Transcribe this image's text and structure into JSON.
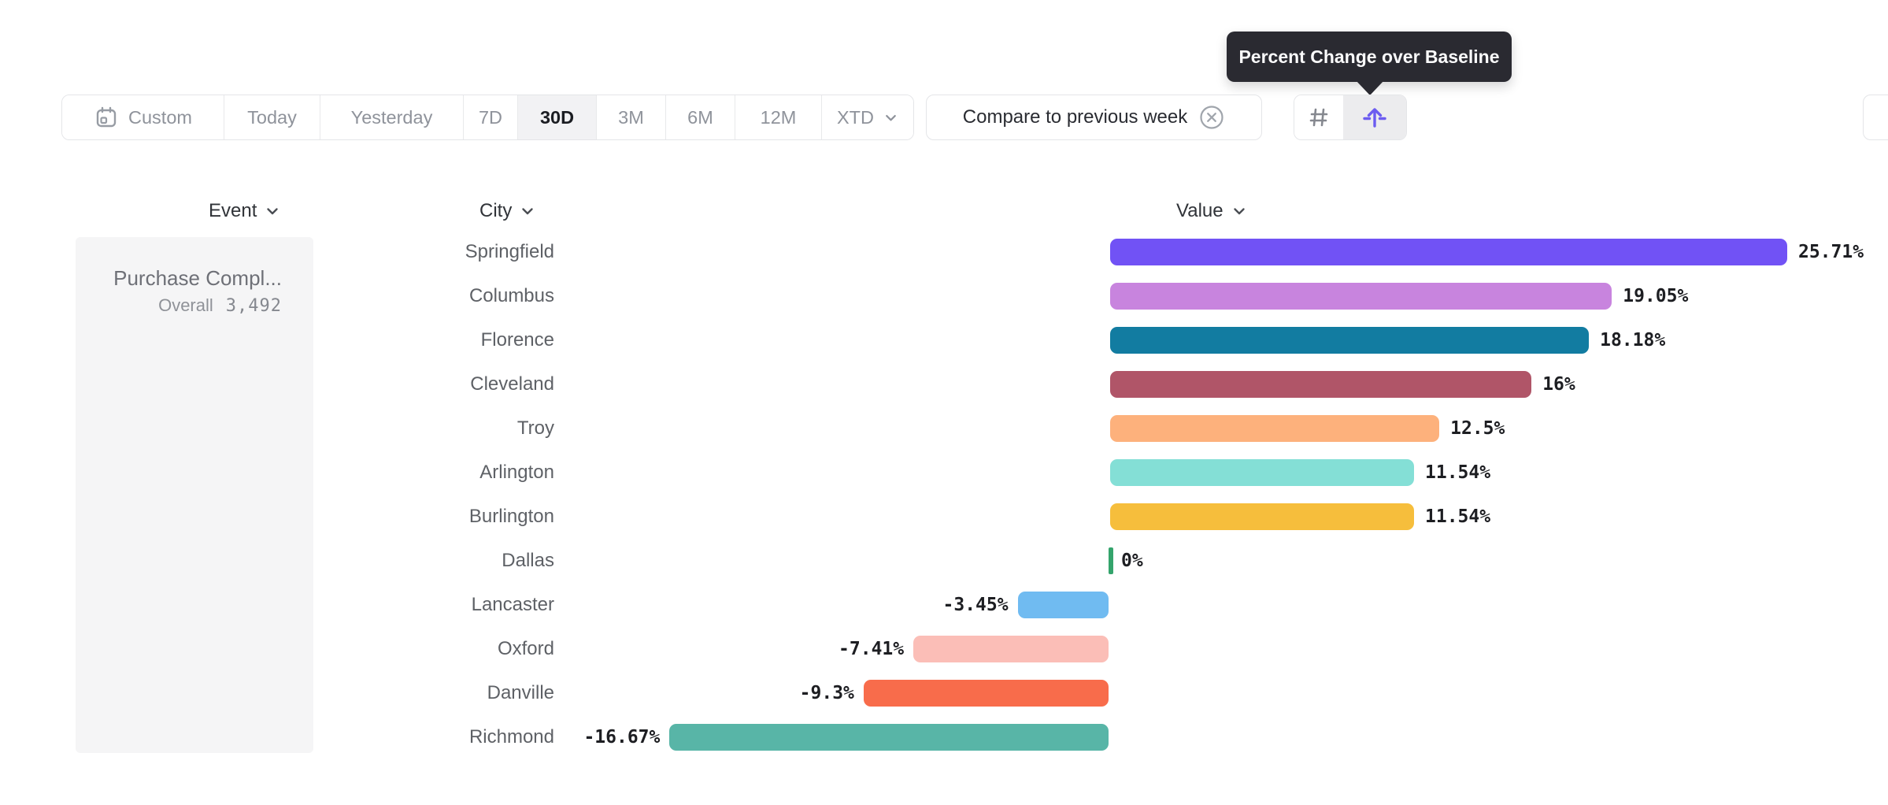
{
  "tooltip": {
    "text": "Percent Change over Baseline"
  },
  "toolbar": {
    "ranges": [
      {
        "label": "Custom",
        "icon": "calendar-icon",
        "selected": false
      },
      {
        "label": "Today",
        "selected": false
      },
      {
        "label": "Yesterday",
        "selected": false
      },
      {
        "label": "7D",
        "selected": false
      },
      {
        "label": "30D",
        "selected": true
      },
      {
        "label": "3M",
        "selected": false
      },
      {
        "label": "6M",
        "selected": false
      },
      {
        "label": "12M",
        "selected": false
      },
      {
        "label": "XTD",
        "icon_right": "chevron-down-icon",
        "selected": false
      }
    ],
    "compare": {
      "label": "Compare to previous week",
      "dismiss_icon": "x-circle-icon"
    },
    "view_toggle": {
      "options": [
        {
          "name": "number-view",
          "icon": "hash-icon",
          "selected": false
        },
        {
          "name": "percent-change-view",
          "icon": "arrow-up-baseline-icon",
          "selected": true
        }
      ],
      "accent_color": "#6C5CF0"
    }
  },
  "columns": {
    "event": "Event",
    "city": "City",
    "value": "Value"
  },
  "event_panel": {
    "title": "Purchase Compl...",
    "metric_label": "Overall",
    "metric_value": "3,492"
  },
  "chart_data": {
    "type": "bar",
    "orientation": "horizontal",
    "title": "Percent Change over Baseline",
    "unit": "%",
    "baseline": 0,
    "xlim": [
      -16.67,
      25.71
    ],
    "grid": false,
    "legend": false,
    "categories": [
      "Springfield",
      "Columbus",
      "Florence",
      "Cleveland",
      "Troy",
      "Arlington",
      "Burlington",
      "Dallas",
      "Lancaster",
      "Oxford",
      "Danville",
      "Richmond"
    ],
    "values": [
      25.71,
      19.05,
      18.18,
      16,
      12.5,
      11.54,
      11.54,
      0,
      -3.45,
      -7.41,
      -9.3,
      -16.67
    ],
    "value_labels": [
      "25.71%",
      "19.05%",
      "18.18%",
      "16%",
      "12.5%",
      "11.54%",
      "11.54%",
      "0%",
      "-3.45%",
      "-7.41%",
      "-9.3%",
      "-16.67%"
    ],
    "colors": [
      "#7152F5",
      "#C884DE",
      "#127CA1",
      "#B05568",
      "#FDB17C",
      "#84DFD6",
      "#F6BE3C",
      "#34A46C",
      "#70BBF1",
      "#FBBEB7",
      "#F86C4B",
      "#58B5A7"
    ]
  }
}
